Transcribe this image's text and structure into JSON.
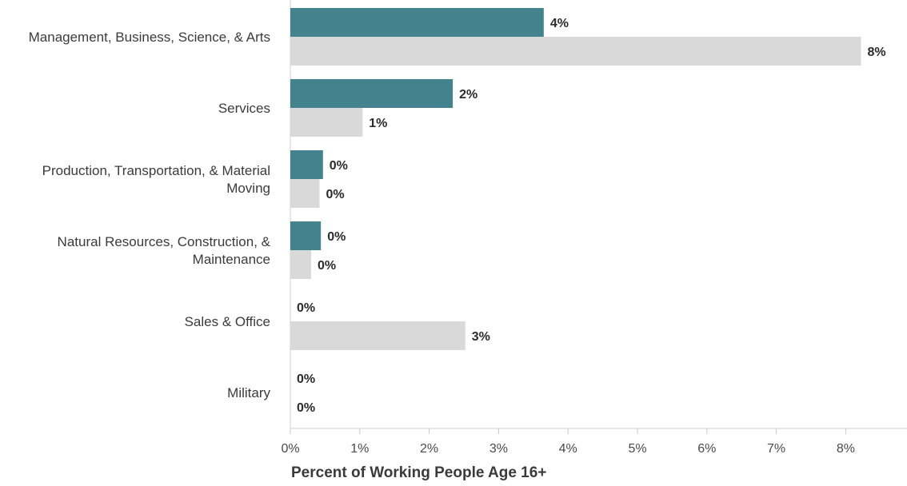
{
  "chart_data": {
    "type": "bar",
    "orientation": "horizontal",
    "categories": [
      [
        "Management, Business, Science, & Arts"
      ],
      [
        "Services"
      ],
      [
        "Production, Transportation, & Material",
        "Moving"
      ],
      [
        "Natural Resources, Construction, &",
        "Maintenance"
      ],
      [
        "Sales & Office"
      ],
      [
        "Military"
      ]
    ],
    "series": [
      {
        "color": "#42838d",
        "values": [
          3.65,
          2.34,
          0.47,
          0.44,
          0,
          0
        ],
        "value_labels": [
          "4%",
          "2%",
          "0%",
          "0%",
          "0%",
          "0%"
        ]
      },
      {
        "color": "#d9d9d9",
        "values": [
          8.22,
          1.04,
          0.42,
          0.3,
          2.52,
          0
        ],
        "value_labels": [
          "8%",
          "1%",
          "0%",
          "0%",
          "3%",
          "0%"
        ]
      }
    ],
    "x_ticks": [
      "0%",
      "1%",
      "2%",
      "3%",
      "4%",
      "5%",
      "6%",
      "7%",
      "8%"
    ],
    "xlim": [
      0,
      8.7
    ],
    "xlabel": "Percent of Working People Age 16+",
    "title": "",
    "ylabel": "",
    "grid": false,
    "legend": "none"
  }
}
